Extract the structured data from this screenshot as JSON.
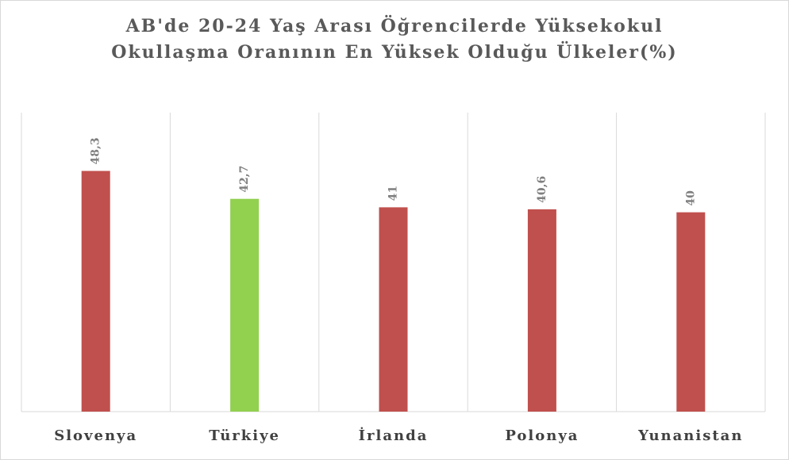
{
  "chart_data": {
    "type": "bar",
    "title": [
      "AB'de 20-24 Yaş Arası Öğrencilerde Yüksekokul",
      "Okullaşma Oranının En Yüksek Olduğu Ülkeler(%)"
    ],
    "categories": [
      "Slovenya",
      "Türkiye",
      "İrlanda",
      "Polonya",
      "Yunanistan"
    ],
    "values": [
      48.3,
      42.7,
      41,
      40.6,
      40
    ],
    "value_labels": [
      "48,3",
      "42,7",
      "41",
      "40,6",
      "40"
    ],
    "colors": [
      "#c0504d",
      "#92d050",
      "#c0504d",
      "#c0504d",
      "#c0504d"
    ],
    "ylim": [
      0,
      60
    ]
  }
}
